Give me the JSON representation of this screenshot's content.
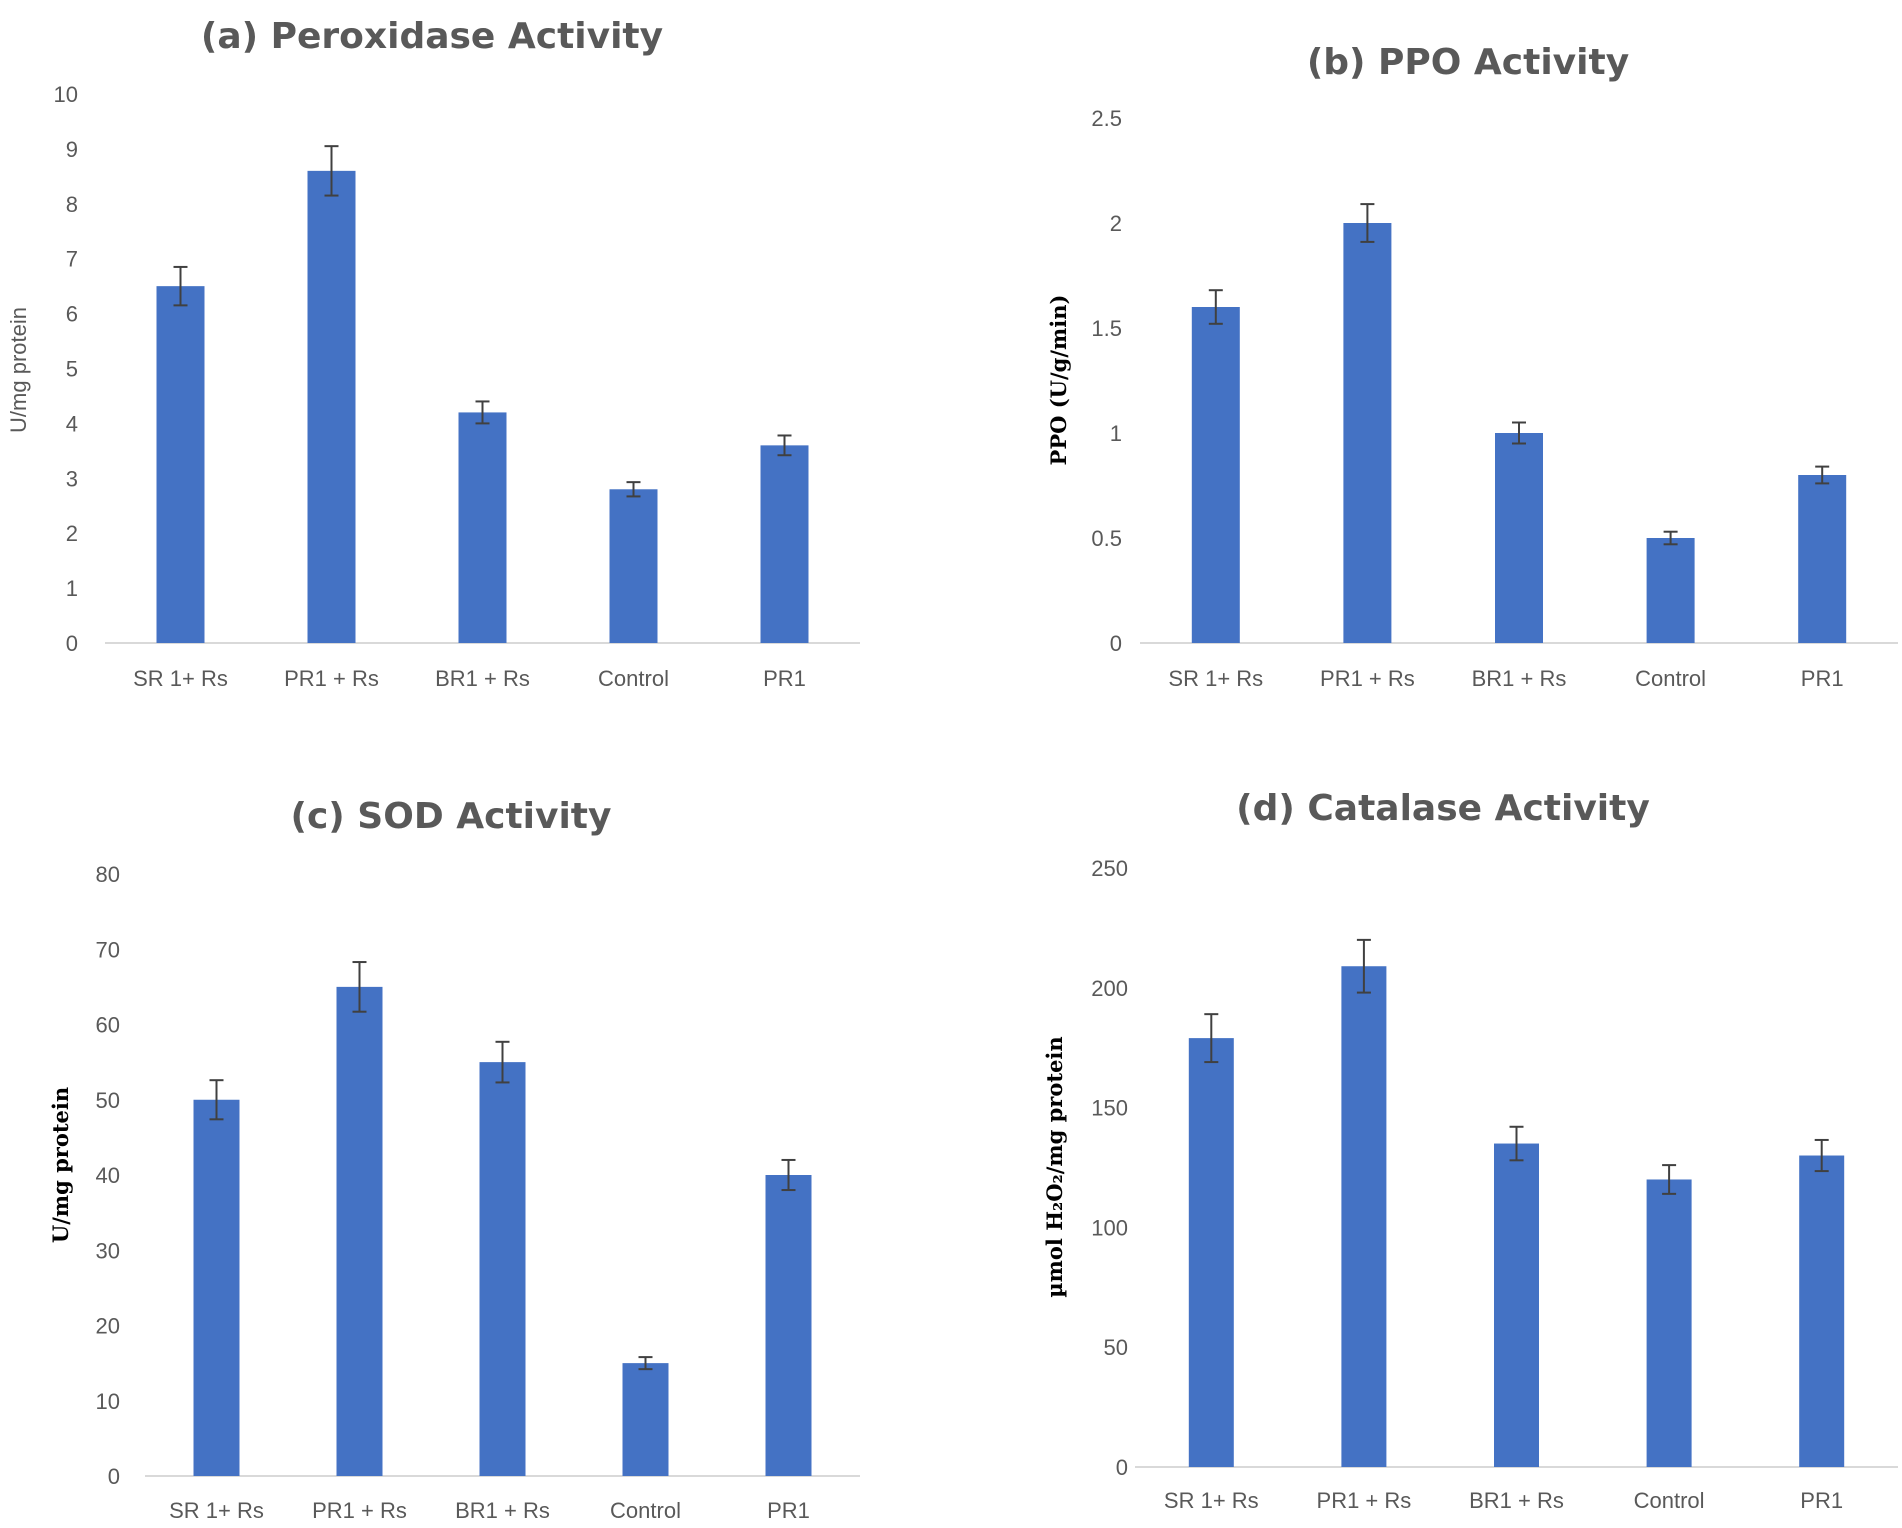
{
  "chart_data": [
    {
      "id": "a",
      "type": "bar",
      "title": "(a) Peroxidase Activity",
      "categories": [
        "SR 1+ Rs",
        "PR1 + Rs",
        "BR1 + Rs",
        "Control",
        "PR1"
      ],
      "values": [
        6.5,
        8.6,
        4.2,
        2.8,
        3.6
      ],
      "errors": [
        0.35,
        0.45,
        0.2,
        0.13,
        0.18
      ],
      "ylabel": "U/mg protein",
      "ylabel_style": "normal",
      "ylim": [
        0,
        10
      ],
      "yticks": [
        0,
        1,
        2,
        3,
        4,
        5,
        6,
        7,
        8,
        9,
        10
      ],
      "ytick_labels": [
        "0",
        "1",
        "2",
        "3",
        "4",
        "5",
        "6",
        "7",
        "8",
        "9",
        "10"
      ],
      "bar_color": "#4472c4",
      "grid": false
    },
    {
      "id": "b",
      "type": "bar",
      "title": "(b) PPO Activity",
      "categories": [
        "SR 1+ Rs",
        "PR1 + Rs",
        "BR1 + Rs",
        "Control",
        "PR1"
      ],
      "values": [
        1.6,
        2.0,
        1.0,
        0.5,
        0.8
      ],
      "errors": [
        0.08,
        0.09,
        0.05,
        0.03,
        0.04
      ],
      "ylabel": "PPO (U/g/min)",
      "ylabel_style": "bold",
      "ylim": [
        0,
        2.5
      ],
      "yticks": [
        0,
        0.5,
        1,
        1.5,
        2,
        2.5
      ],
      "ytick_labels": [
        "0",
        "0.5",
        "1",
        "1.5",
        "2",
        "2.5"
      ],
      "bar_color": "#4472c4",
      "grid": false
    },
    {
      "id": "c",
      "type": "bar",
      "title": "(c) SOD Activity",
      "categories": [
        "SR 1+ Rs",
        "PR1 + Rs",
        "BR1 + Rs",
        "Control",
        "PR1"
      ],
      "values": [
        50,
        65,
        55,
        15,
        40
      ],
      "errors": [
        2.6,
        3.3,
        2.7,
        0.8,
        2.0
      ],
      "ylabel": "U/mg protein",
      "ylabel_style": "bold",
      "ylim": [
        0,
        80
      ],
      "yticks": [
        0,
        10,
        20,
        30,
        40,
        50,
        60,
        70,
        80
      ],
      "ytick_labels": [
        "0",
        "10",
        "20",
        "30",
        "40",
        "50",
        "60",
        "70",
        "80"
      ],
      "bar_color": "#4472c4",
      "grid": false
    },
    {
      "id": "d",
      "type": "bar",
      "title": "(d) Catalase Activity",
      "categories": [
        "SR 1+ Rs",
        "PR1 + Rs",
        "BR1 + Rs",
        "Control",
        "PR1"
      ],
      "values": [
        179,
        209,
        135,
        120,
        130
      ],
      "errors": [
        10,
        11,
        7,
        6,
        6.5
      ],
      "ylabel": "µmol H₂O₂/mg protein",
      "ylabel_style": "bold",
      "ylim": [
        0,
        250
      ],
      "yticks": [
        0,
        50,
        100,
        150,
        200,
        250
      ],
      "ytick_labels": [
        "0",
        "50",
        "100",
        "150",
        "200",
        "250"
      ],
      "bar_color": "#4472c4",
      "grid": false
    }
  ]
}
